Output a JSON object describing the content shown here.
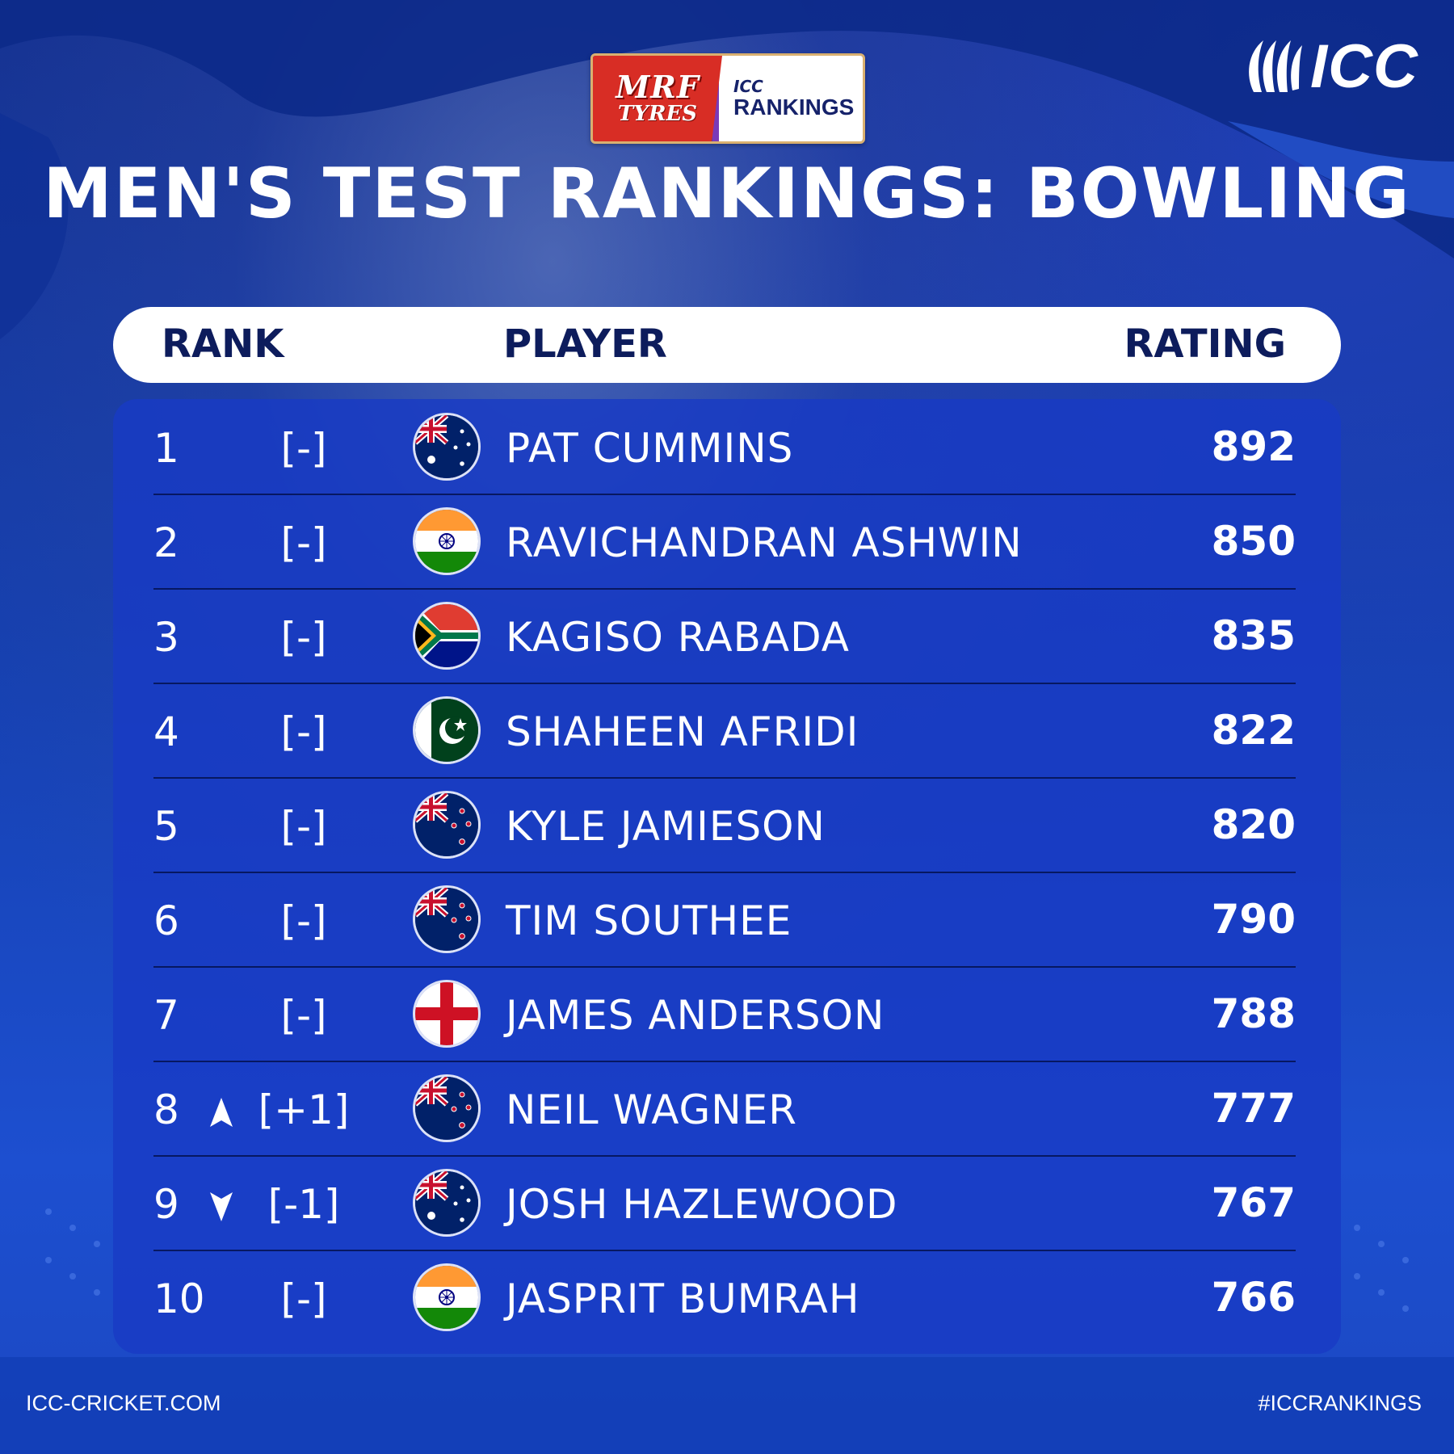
{
  "sponsor": {
    "mrf_top": "MRF",
    "mrf_bottom": "TYRES",
    "icc_small": "ICC",
    "icc_rankings": "RANKINGS"
  },
  "brand": {
    "logo_text": "ICC"
  },
  "title": "MEN'S TEST RANKINGS: BOWLING",
  "columns": {
    "rank": "RANK",
    "player": "PLAYER",
    "rating": "RATING"
  },
  "rows": [
    {
      "rank": "1",
      "change": "[-]",
      "trend": "none",
      "flag": "australia-flag-icon",
      "player": "PAT CUMMINS",
      "rating": "892"
    },
    {
      "rank": "2",
      "change": "[-]",
      "trend": "none",
      "flag": "india-flag-icon",
      "player": "RAVICHANDRAN ASHWIN",
      "rating": "850"
    },
    {
      "rank": "3",
      "change": "[-]",
      "trend": "none",
      "flag": "south-africa-flag-icon",
      "player": "KAGISO RABADA",
      "rating": "835"
    },
    {
      "rank": "4",
      "change": "[-]",
      "trend": "none",
      "flag": "pakistan-flag-icon",
      "player": "SHAHEEN AFRIDI",
      "rating": "822"
    },
    {
      "rank": "5",
      "change": "[-]",
      "trend": "none",
      "flag": "new-zealand-flag-icon",
      "player": "KYLE JAMIESON",
      "rating": "820"
    },
    {
      "rank": "6",
      "change": "[-]",
      "trend": "none",
      "flag": "new-zealand-flag-icon",
      "player": "TIM SOUTHEE",
      "rating": "790"
    },
    {
      "rank": "7",
      "change": "[-]",
      "trend": "none",
      "flag": "england-flag-icon",
      "player": "JAMES ANDERSON",
      "rating": "788"
    },
    {
      "rank": "8",
      "change": "[+1]",
      "trend": "up",
      "flag": "new-zealand-flag-icon",
      "player": "NEIL WAGNER",
      "rating": "777"
    },
    {
      "rank": "9",
      "change": "[-1]",
      "trend": "down",
      "flag": "australia-flag-icon",
      "player": "JOSH HAZLEWOOD",
      "rating": "767"
    },
    {
      "rank": "10",
      "change": "[-]",
      "trend": "none",
      "flag": "india-flag-icon",
      "player": "JASPRIT BUMRAH",
      "rating": "766"
    }
  ],
  "footer": {
    "website": "ICC-CRICKET.COM",
    "hashtag": "#ICCRANKINGS"
  }
}
